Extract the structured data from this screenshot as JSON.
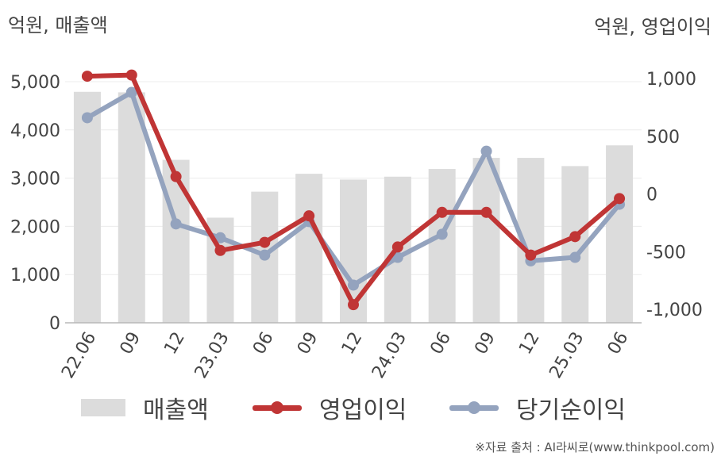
{
  "chart_data": {
    "type": "bar+line",
    "y_left_unit": "억원, 매출액",
    "y_right_unit": "억원, 영업이익",
    "categories": [
      "22.06",
      "09",
      "12",
      "23.03",
      "06",
      "09",
      "12",
      "24.03",
      "06",
      "09",
      "12",
      "25.03",
      "06"
    ],
    "y_left_ticks": [
      "5,000",
      "4,000",
      "3,000",
      "2,000",
      "1,000",
      "0"
    ],
    "y_right_ticks": [
      "1,000",
      "500",
      "0",
      "-500",
      "-1,000"
    ],
    "y_left_lim": [
      0,
      5000
    ],
    "y_right_lim": [
      -1000,
      1000
    ],
    "grid": true,
    "legend_position": "bottom",
    "bars": {
      "name": "매출액",
      "color": "#dcdcdc",
      "values": [
        4790,
        4780,
        3380,
        2180,
        2720,
        3090,
        2970,
        3030,
        3190,
        3420,
        3420,
        3250,
        3680
      ]
    },
    "series": [
      {
        "name": "영업이익",
        "axis": "right",
        "color": "#c03535",
        "values": [
          1020,
          1030,
          150,
          -490,
          -420,
          -190,
          -960,
          -460,
          -160,
          -160,
          -530,
          -370,
          -40
        ]
      },
      {
        "name": "당기순이익",
        "axis": "right",
        "color": "#94a3be",
        "values": [
          660,
          880,
          -260,
          -380,
          -530,
          -240,
          -790,
          -550,
          -350,
          370,
          -580,
          -550,
          -90
        ]
      }
    ]
  },
  "source_text": "※자료 출처 : AI라씨로(www.thinkpool.com)"
}
